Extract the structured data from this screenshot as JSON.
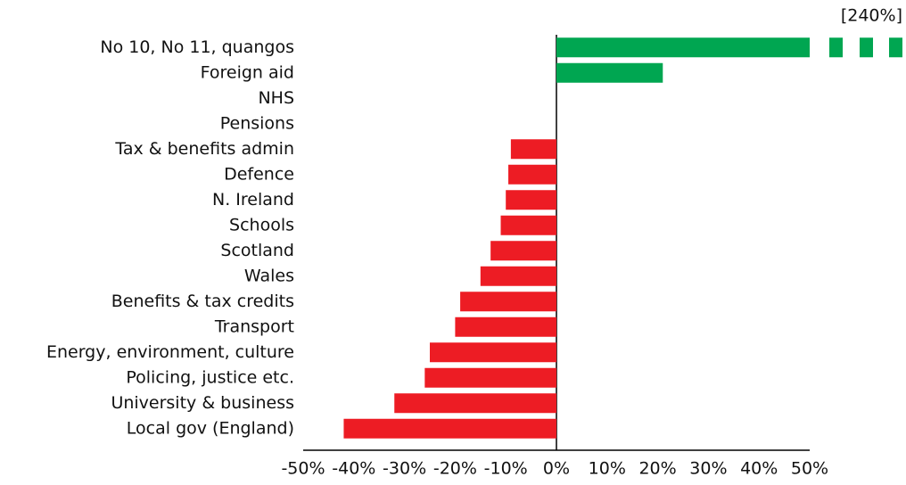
{
  "chart_data": {
    "type": "hbar",
    "categories": [
      "No 10, No 11, quangos",
      "Foreign aid",
      "NHS",
      "Pensions",
      "Tax & benefits admin",
      "Defence",
      "N. Ireland",
      "Schools",
      "Scotland",
      "Wales",
      "Benefits & tax credits",
      "Transport",
      "Energy, environment, culture",
      "Policing, justice etc.",
      "University & business",
      "Local gov (England)"
    ],
    "values": [
      240,
      21,
      0,
      0,
      -9,
      -9.5,
      -10,
      -11,
      -13,
      -15,
      -19,
      -20,
      -25,
      -26,
      -32,
      -42
    ],
    "value_labels": [
      "[240%]",
      null,
      null,
      null,
      null,
      null,
      null,
      null,
      null,
      null,
      null,
      null,
      null,
      null,
      null,
      null
    ],
    "positive_color": "#00a651",
    "negative_color": "#ed1c24",
    "xlim": [
      -50,
      50
    ],
    "xticks": [
      {
        "value": -50,
        "label": "-50%"
      },
      {
        "value": -40,
        "label": "-40%"
      },
      {
        "value": -30,
        "label": "-30%"
      },
      {
        "value": -20,
        "label": "-20%"
      },
      {
        "value": -10,
        "label": "-10%"
      },
      {
        "value": 0,
        "label": "0%"
      },
      {
        "value": 10,
        "label": "10%"
      },
      {
        "value": 20,
        "label": "20%"
      },
      {
        "value": 30,
        "label": "30%"
      },
      {
        "value": 40,
        "label": "40%"
      },
      {
        "value": 50,
        "label": "50%"
      }
    ]
  }
}
